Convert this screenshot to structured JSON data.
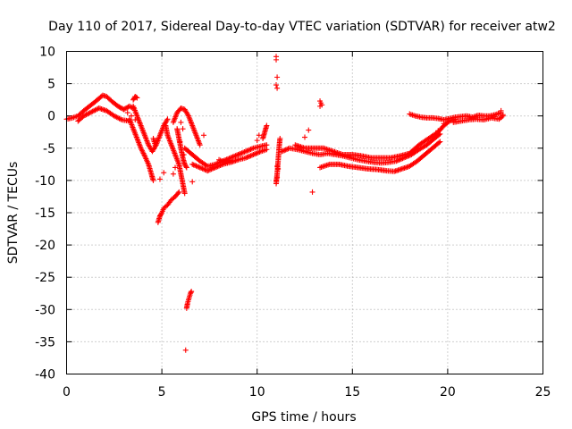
{
  "chart_data": {
    "type": "scatter",
    "title": "Day 110 of 2017, Sidereal Day-to-day VTEC variation (SDTVAR) for receiver atw2",
    "xlabel": "GPS time / hours",
    "ylabel": "SDTVAR / TECUs",
    "xlim": [
      0,
      25
    ],
    "ylim": [
      -40,
      10
    ],
    "xticks": [
      0,
      5,
      10,
      15,
      20,
      25
    ],
    "yticks": [
      10,
      5,
      0,
      -5,
      -10,
      -15,
      -20,
      -25,
      -30,
      -35,
      -40
    ],
    "grid": true,
    "marker": "+",
    "color": "#ff0000",
    "series": [
      {
        "name": "SDTVAR",
        "segments": [
          [
            [
              0,
              -0.5
            ],
            [
              0.3,
              -0.3
            ],
            [
              0.6,
              0.0
            ],
            [
              0.9,
              0.8
            ],
            [
              1.2,
              1.5
            ],
            [
              1.5,
              2.2
            ],
            [
              1.9,
              3.2
            ],
            [
              2.1,
              3.0
            ],
            [
              2.4,
              2.2
            ],
            [
              2.7,
              1.5
            ],
            [
              3.0,
              1.0
            ],
            [
              3.3,
              1.5
            ],
            [
              3.5,
              1.2
            ]
          ],
          [
            [
              0.6,
              -0.8
            ],
            [
              0.9,
              0.0
            ],
            [
              1.3,
              0.6
            ],
            [
              1.7,
              1.2
            ],
            [
              2.1,
              0.8
            ],
            [
              2.5,
              0.0
            ],
            [
              2.9,
              -0.6
            ],
            [
              3.3,
              -0.8
            ]
          ],
          [
            [
              3.3,
              -0.5
            ],
            [
              3.5,
              -2.0
            ],
            [
              3.7,
              -3.5
            ],
            [
              3.9,
              -5.0
            ],
            [
              4.1,
              -6.2
            ],
            [
              4.3,
              -7.5
            ],
            [
              4.45,
              -9.0
            ],
            [
              4.55,
              -10.0
            ]
          ],
          [
            [
              3.5,
              1.5
            ],
            [
              3.7,
              0.0
            ],
            [
              3.9,
              -1.5
            ],
            [
              4.1,
              -3.0
            ],
            [
              4.3,
              -4.5
            ],
            [
              4.5,
              -5.5
            ],
            [
              4.7,
              -4.5
            ],
            [
              4.9,
              -3.0
            ],
            [
              5.1,
              -1.5
            ],
            [
              5.3,
              -0.5
            ]
          ],
          [
            [
              4.8,
              -16.5
            ],
            [
              4.9,
              -15.5
            ],
            [
              5.0,
              -15.0
            ],
            [
              5.1,
              -14.3
            ],
            [
              5.3,
              -13.8
            ],
            [
              5.5,
              -13.0
            ],
            [
              5.7,
              -12.5
            ],
            [
              5.9,
              -11.8
            ]
          ],
          [
            [
              5.2,
              -1.5
            ],
            [
              5.3,
              -3.0
            ],
            [
              5.5,
              -4.5
            ],
            [
              5.7,
              -6.0
            ],
            [
              5.9,
              -7.5
            ],
            [
              6.0,
              -9.0
            ],
            [
              6.1,
              -10.5
            ],
            [
              6.2,
              -12.0
            ]
          ],
          [
            [
              5.8,
              -2.0
            ],
            [
              5.9,
              -3.5
            ],
            [
              6.0,
              -5.0
            ],
            [
              6.1,
              -6.5
            ],
            [
              6.2,
              -7.5
            ],
            [
              6.3,
              -8.0
            ]
          ],
          [
            [
              5.6,
              -1.0
            ],
            [
              5.8,
              0.5
            ],
            [
              6.0,
              1.2
            ],
            [
              6.2,
              1.0
            ],
            [
              6.4,
              0.0
            ],
            [
              6.6,
              -1.5
            ],
            [
              6.8,
              -3.0
            ],
            [
              7.0,
              -4.5
            ]
          ],
          [
            [
              6.3,
              -29.8
            ],
            [
              6.35,
              -29.0
            ],
            [
              6.4,
              -28.5
            ],
            [
              6.45,
              -28.0
            ],
            [
              6.5,
              -27.5
            ],
            [
              6.55,
              -27.2
            ]
          ],
          [
            [
              6.2,
              -5.0
            ],
            [
              6.6,
              -6.0
            ],
            [
              7.0,
              -7.0
            ],
            [
              7.4,
              -7.8
            ],
            [
              7.8,
              -7.5
            ],
            [
              8.2,
              -7.0
            ],
            [
              8.6,
              -6.5
            ],
            [
              9.0,
              -6.0
            ],
            [
              9.4,
              -5.5
            ],
            [
              9.8,
              -5.0
            ],
            [
              10.2,
              -4.7
            ],
            [
              10.5,
              -4.5
            ]
          ],
          [
            [
              6.6,
              -7.5
            ],
            [
              7.0,
              -8.0
            ],
            [
              7.4,
              -8.5
            ],
            [
              7.8,
              -8.0
            ],
            [
              8.2,
              -7.5
            ],
            [
              8.6,
              -7.2
            ],
            [
              9.0,
              -6.8
            ],
            [
              9.4,
              -6.5
            ],
            [
              9.8,
              -6.0
            ],
            [
              10.2,
              -5.5
            ],
            [
              10.5,
              -5.2
            ]
          ],
          [
            [
              10.3,
              -3.5
            ],
            [
              10.4,
              -2.5
            ],
            [
              10.5,
              -1.5
            ]
          ],
          [
            [
              11.0,
              -10.5
            ],
            [
              11.05,
              -9.0
            ],
            [
              11.1,
              -7.0
            ],
            [
              11.15,
              -5.0
            ],
            [
              11.2,
              -3.5
            ]
          ],
          [
            [
              11.3,
              -5.5
            ],
            [
              11.7,
              -5.0
            ],
            [
              12.1,
              -5.2
            ],
            [
              12.5,
              -5.5
            ],
            [
              12.9,
              -5.8
            ],
            [
              13.3,
              -6.0
            ],
            [
              13.7,
              -5.8
            ],
            [
              14.1,
              -6.0
            ],
            [
              14.5,
              -6.2
            ],
            [
              14.9,
              -6.5
            ],
            [
              15.3,
              -6.8
            ],
            [
              15.7,
              -7.0
            ],
            [
              16.1,
              -7.2
            ],
            [
              16.5,
              -7.3
            ],
            [
              16.9,
              -7.2
            ],
            [
              17.3,
              -7.0
            ],
            [
              17.7,
              -6.5
            ],
            [
              18.1,
              -6.0
            ],
            [
              18.5,
              -5.2
            ],
            [
              18.9,
              -4.5
            ],
            [
              19.3,
              -3.5
            ],
            [
              19.6,
              -2.8
            ]
          ],
          [
            [
              12.0,
              -4.5
            ],
            [
              12.5,
              -5.0
            ],
            [
              13.0,
              -5.0
            ],
            [
              13.5,
              -5.0
            ],
            [
              14.0,
              -5.5
            ],
            [
              14.5,
              -6.0
            ],
            [
              15.0,
              -6.0
            ],
            [
              15.5,
              -6.2
            ],
            [
              16.0,
              -6.5
            ],
            [
              16.5,
              -6.5
            ],
            [
              17.0,
              -6.5
            ],
            [
              17.5,
              -6.2
            ],
            [
              18.0,
              -5.8
            ],
            [
              18.5,
              -4.5
            ],
            [
              19.0,
              -3.5
            ],
            [
              19.5,
              -2.5
            ],
            [
              19.8,
              -1.5
            ],
            [
              20.1,
              -0.8
            ],
            [
              20.4,
              -0.5
            ]
          ],
          [
            [
              13.3,
              -8.0
            ],
            [
              13.8,
              -7.5
            ],
            [
              14.3,
              -7.5
            ],
            [
              14.8,
              -7.8
            ],
            [
              15.3,
              -8.0
            ],
            [
              15.8,
              -8.2
            ],
            [
              16.3,
              -8.3
            ],
            [
              16.8,
              -8.5
            ],
            [
              17.2,
              -8.6
            ],
            [
              17.6,
              -8.2
            ],
            [
              18.0,
              -7.8
            ],
            [
              18.4,
              -7.0
            ],
            [
              18.8,
              -6.0
            ],
            [
              19.2,
              -5.0
            ],
            [
              19.6,
              -4.0
            ]
          ],
          [
            [
              18.0,
              0.3
            ],
            [
              18.3,
              0.0
            ],
            [
              18.6,
              -0.2
            ],
            [
              18.9,
              -0.3
            ],
            [
              19.2,
              -0.3
            ],
            [
              19.5,
              -0.4
            ],
            [
              19.8,
              -0.6
            ],
            [
              20.1,
              -0.4
            ],
            [
              20.4,
              -0.2
            ],
            [
              20.7,
              -0.1
            ],
            [
              21.0,
              0.0
            ],
            [
              21.3,
              -0.2
            ],
            [
              21.6,
              0.1
            ],
            [
              21.9,
              0.0
            ],
            [
              22.2,
              0.0
            ],
            [
              22.5,
              0.2
            ],
            [
              22.8,
              0.5
            ]
          ],
          [
            [
              20.3,
              -1.0
            ],
            [
              20.7,
              -0.8
            ],
            [
              21.1,
              -0.6
            ],
            [
              21.5,
              -0.5
            ],
            [
              21.9,
              -0.6
            ],
            [
              22.3,
              -0.3
            ],
            [
              22.7,
              -0.5
            ],
            [
              22.9,
              0.0
            ]
          ],
          [
            [
              3.5,
              2.5
            ],
            [
              3.6,
              3.0
            ],
            [
              3.7,
              2.8
            ]
          ],
          [
            [
              4.55,
              -3.5
            ],
            [
              4.6,
              -4.0
            ],
            [
              4.65,
              -4.5
            ],
            [
              4.7,
              -3.8
            ]
          ],
          [
            [
              7.2,
              -3.0
            ]
          ],
          [
            [
              8.0,
              -6.8
            ],
            [
              8.3,
              -7.2
            ],
            [
              8.6,
              -6.9
            ]
          ]
        ],
        "points": [
          [
            11.0,
            9.2
          ],
          [
            11.0,
            8.7
          ],
          [
            11.05,
            6.0
          ],
          [
            11.0,
            4.8
          ],
          [
            11.05,
            4.3
          ],
          [
            13.3,
            2.3
          ],
          [
            13.35,
            2.0
          ],
          [
            13.4,
            1.7
          ],
          [
            13.3,
            1.5
          ],
          [
            12.9,
            -11.8
          ],
          [
            6.25,
            -36.3
          ],
          [
            6.6,
            -10.2
          ],
          [
            3.2,
            0.5
          ],
          [
            3.4,
            0.0
          ],
          [
            3.6,
            -0.6
          ],
          [
            10.0,
            -3.8
          ],
          [
            10.1,
            -3.0
          ],
          [
            12.7,
            -2.2
          ],
          [
            12.5,
            -3.3
          ],
          [
            11.05,
            -7.8
          ],
          [
            11.1,
            -8.2
          ],
          [
            11.0,
            -10.0
          ],
          [
            11.05,
            -9.5
          ],
          [
            5.1,
            -8.8
          ],
          [
            4.9,
            -9.8
          ],
          [
            4.5,
            -9.6
          ],
          [
            6.0,
            -1.0
          ],
          [
            6.1,
            -2.0
          ],
          [
            5.95,
            -4.0
          ],
          [
            6.15,
            -6.0
          ],
          [
            5.7,
            -8.0
          ],
          [
            5.6,
            -9.0
          ],
          [
            19.5,
            -2.3
          ],
          [
            19.8,
            -1.2
          ],
          [
            22.8,
            0.8
          ],
          [
            22.9,
            0.2
          ]
        ]
      }
    ]
  }
}
